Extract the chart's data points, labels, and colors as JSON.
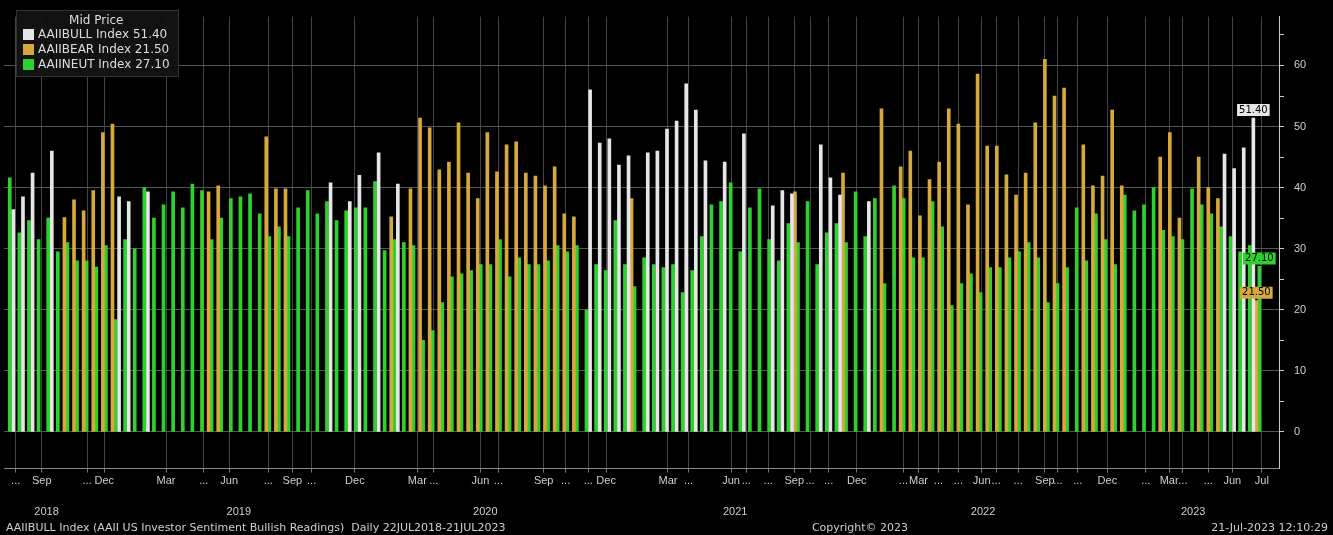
{
  "chart_data": {
    "type": "bar",
    "legend_title": "Mid Price",
    "legend": "top left",
    "grid": true,
    "x": [
      "2018-07-26",
      "2018-08-09",
      "2018-08-23",
      "2018-09-06",
      "2018-09-20",
      "2018-10-04",
      "2018-10-18",
      "2018-11-01",
      "2018-11-15",
      "2018-11-29",
      "2018-12-13",
      "2018-12-27",
      "2019-01-10",
      "2019-01-24",
      "2019-02-07",
      "2019-02-21",
      "2019-03-07",
      "2019-03-21",
      "2019-04-04",
      "2019-04-18",
      "2019-05-02",
      "2019-05-16",
      "2019-05-30",
      "2019-06-13",
      "2019-06-27",
      "2019-07-11",
      "2019-07-25",
      "2019-08-08",
      "2019-08-22",
      "2019-09-05",
      "2019-09-19",
      "2019-10-03",
      "2019-10-17",
      "2019-10-31",
      "2019-11-14",
      "2019-11-28",
      "2019-12-12",
      "2019-12-26",
      "2020-01-09",
      "2020-01-23",
      "2020-02-06",
      "2020-02-20",
      "2020-03-05",
      "2020-03-19",
      "2020-04-02",
      "2020-04-16",
      "2020-04-30",
      "2020-05-14",
      "2020-05-28",
      "2020-06-11",
      "2020-06-25",
      "2020-07-09",
      "2020-07-23",
      "2020-08-06",
      "2020-08-20",
      "2020-09-03",
      "2020-09-17",
      "2020-10-01",
      "2020-10-15",
      "2020-10-29",
      "2020-11-12",
      "2020-11-26",
      "2020-12-10",
      "2020-12-24",
      "2021-01-07",
      "2021-01-21",
      "2021-02-04",
      "2021-02-18",
      "2021-03-04",
      "2021-03-18",
      "2021-04-01",
      "2021-04-15",
      "2021-04-29",
      "2021-05-13",
      "2021-05-27",
      "2021-06-10",
      "2021-06-24",
      "2021-07-08",
      "2021-07-22",
      "2021-08-05",
      "2021-08-19",
      "2021-09-02",
      "2021-09-16",
      "2021-09-30",
      "2021-10-14",
      "2021-10-28",
      "2021-11-11",
      "2021-11-25",
      "2021-12-09",
      "2021-12-23",
      "2022-01-06",
      "2022-01-20",
      "2022-02-03",
      "2022-02-17",
      "2022-03-03",
      "2022-03-17",
      "2022-03-31",
      "2022-04-14",
      "2022-04-28",
      "2022-05-12",
      "2022-05-26",
      "2022-06-09",
      "2022-06-23",
      "2022-07-07",
      "2022-07-21",
      "2022-08-04",
      "2022-08-18",
      "2022-09-01",
      "2022-09-15",
      "2022-09-29",
      "2022-10-13",
      "2022-10-27",
      "2022-11-10",
      "2022-11-24",
      "2022-12-08",
      "2022-12-22",
      "2023-01-05",
      "2023-01-19",
      "2023-02-02",
      "2023-02-16",
      "2023-03-02",
      "2023-03-16",
      "2023-03-30",
      "2023-04-13",
      "2023-04-27",
      "2023-05-11",
      "2023-05-25",
      "2023-06-08",
      "2023-06-22",
      "2023-07-06",
      "2023-07-20"
    ],
    "xlim": [
      "2018-07-22",
      "2023-08-22"
    ],
    "xticks": [
      {
        "value": "2018-08-08",
        "label": "..."
      },
      {
        "value": "2018-09-15",
        "label": "Sep"
      },
      {
        "value": "2018-11-20",
        "label": "..."
      },
      {
        "value": "2018-12-15",
        "label": "Dec"
      },
      {
        "value": "2019-03-15",
        "label": "Mar"
      },
      {
        "value": "2019-05-09",
        "label": "..."
      },
      {
        "value": "2019-06-15",
        "label": "Jun"
      },
      {
        "value": "2019-08-11",
        "label": "..."
      },
      {
        "value": "2019-09-15",
        "label": "Sep"
      },
      {
        "value": "2019-10-13",
        "label": "..."
      },
      {
        "value": "2019-12-15",
        "label": "Dec"
      },
      {
        "value": "2020-03-15",
        "label": "Mar"
      },
      {
        "value": "2020-04-08",
        "label": "..."
      },
      {
        "value": "2020-06-15",
        "label": "Jun"
      },
      {
        "value": "2020-07-11",
        "label": "..."
      },
      {
        "value": "2020-09-15",
        "label": "Sep"
      },
      {
        "value": "2020-10-17",
        "label": "..."
      },
      {
        "value": "2020-11-19",
        "label": "..."
      },
      {
        "value": "2020-12-15",
        "label": "Dec"
      },
      {
        "value": "2021-03-15",
        "label": "Mar"
      },
      {
        "value": "2021-04-14",
        "label": "..."
      },
      {
        "value": "2021-06-15",
        "label": "Jun"
      },
      {
        "value": "2021-07-07",
        "label": "..."
      },
      {
        "value": "2021-08-08",
        "label": "..."
      },
      {
        "value": "2021-09-15",
        "label": "Sep"
      },
      {
        "value": "2021-10-08",
        "label": "..."
      },
      {
        "value": "2021-11-04",
        "label": "..."
      },
      {
        "value": "2021-12-15",
        "label": "Dec"
      },
      {
        "value": "2022-02-21",
        "label": "..."
      },
      {
        "value": "2022-03-15",
        "label": "Mar"
      },
      {
        "value": "2022-04-13",
        "label": "..."
      },
      {
        "value": "2022-05-12",
        "label": "..."
      },
      {
        "value": "2022-06-15",
        "label": "Jun"
      },
      {
        "value": "2022-07-06",
        "label": "..."
      },
      {
        "value": "2022-08-07",
        "label": "..."
      },
      {
        "value": "2022-09-15",
        "label": "Sep"
      },
      {
        "value": "2022-10-04",
        "label": "..."
      },
      {
        "value": "2022-11-02",
        "label": "..."
      },
      {
        "value": "2022-12-15",
        "label": "Dec"
      },
      {
        "value": "2023-02-09",
        "label": "..."
      },
      {
        "value": "2023-03-15",
        "label": "Mar"
      },
      {
        "value": "2023-04-04",
        "label": "..."
      },
      {
        "value": "2023-05-11",
        "label": "..."
      },
      {
        "value": "2023-06-15",
        "label": "Jun"
      },
      {
        "value": "2023-07-28",
        "label": "Jul"
      }
    ],
    "x2lim": [
      "2018-07-22",
      "2023-08-22"
    ],
    "x2ticks": [
      {
        "value": "2018-09-22",
        "label": "2018"
      },
      {
        "value": "2019-06-29",
        "label": "2019"
      },
      {
        "value": "2020-06-22",
        "label": "2020"
      },
      {
        "value": "2021-06-21",
        "label": "2021"
      },
      {
        "value": "2022-06-17",
        "label": "2022"
      },
      {
        "value": "2023-04-19",
        "label": "2023"
      }
    ],
    "ylim": [
      -6,
      68
    ],
    "yticks": [
      0,
      {
        "value": 5,
        "label": null
      },
      10,
      {
        "value": 15,
        "label": null
      },
      20,
      {
        "value": 25,
        "label": null
      },
      30,
      {
        "value": 35,
        "label": null
      },
      40,
      {
        "value": 45,
        "label": null
      },
      50,
      {
        "value": 55,
        "label": null
      },
      60,
      {
        "value": 65,
        "label": null
      }
    ],
    "series": [
      {
        "name": "AAIIBULL Index 51.40",
        "color": "#e6e6e6",
        "values": [
          null,
          36.4,
          38.5,
          42.4,
          null,
          46,
          null,
          null,
          null,
          null,
          null,
          null,
          38.5,
          37.7,
          null,
          39.3,
          null,
          null,
          null,
          null,
          null,
          null,
          null,
          null,
          null,
          null,
          null,
          null,
          null,
          null,
          null,
          null,
          null,
          null,
          40.8,
          null,
          37.7,
          42,
          null,
          45.7,
          null,
          40.6,
          null,
          null,
          null,
          null,
          null,
          null,
          null,
          null,
          null,
          null,
          null,
          null,
          null,
          null,
          null,
          null,
          null,
          null,
          null,
          56,
          47.3,
          48,
          43.7,
          45.2,
          null,
          45.7,
          46,
          49.6,
          50.9,
          57,
          52.7,
          44.4,
          null,
          44.2,
          null,
          48.8,
          null,
          null,
          37,
          39.5,
          39,
          null,
          null,
          47,
          41.6,
          38.8,
          null,
          null,
          37.7,
          null,
          null,
          null,
          null,
          null,
          null,
          null,
          null,
          null,
          null,
          null,
          null,
          null,
          null,
          null,
          null,
          null,
          null,
          null,
          null,
          null,
          null,
          null,
          null,
          null,
          null,
          null,
          null,
          null,
          null,
          null,
          null,
          null,
          null,
          null,
          null,
          45.5,
          43.1,
          46.5,
          51.4
        ],
        "value_labels": [
          null,
          null,
          null,
          null,
          null,
          null,
          null,
          null,
          null,
          null,
          null,
          null,
          null,
          null,
          null,
          null,
          null,
          null,
          null,
          null,
          null,
          null,
          null,
          null,
          null,
          null,
          null,
          null,
          null,
          null,
          null,
          null,
          null,
          null,
          null,
          null,
          null,
          null,
          null,
          null,
          null,
          null,
          null,
          null,
          null,
          null,
          null,
          null,
          null,
          null,
          null,
          null,
          null,
          null,
          null,
          null,
          null,
          null,
          null,
          null,
          null,
          null,
          null,
          null,
          null,
          null,
          null,
          null,
          null,
          null,
          null,
          null,
          null,
          null,
          null,
          null,
          null,
          null,
          null,
          null,
          null,
          null,
          null,
          null,
          null,
          null,
          null,
          null,
          null,
          null,
          null,
          null,
          null,
          null,
          null,
          null,
          null,
          null,
          null,
          null,
          null,
          null,
          null,
          null,
          null,
          null,
          null,
          null,
          null,
          null,
          null,
          null,
          null,
          null,
          null,
          null,
          null,
          null,
          null,
          null,
          null,
          null,
          null,
          null,
          null,
          null,
          null,
          null,
          null,
          null,
          "51.40"
        ]
      },
      {
        "name": "AAIIBEAR Index 21.50",
        "color": "#d6a93c",
        "values": [
          null,
          null,
          null,
          null,
          null,
          null,
          35.1,
          38,
          36.2,
          39.5,
          49,
          50.4,
          null,
          null,
          null,
          null,
          null,
          null,
          null,
          null,
          null,
          39.3,
          40.3,
          null,
          null,
          null,
          null,
          48.3,
          39.8,
          39.8,
          null,
          null,
          null,
          null,
          null,
          null,
          null,
          null,
          null,
          null,
          35.2,
          null,
          39.8,
          51.4,
          49.8,
          42.9,
          44.2,
          50.6,
          42.4,
          38.2,
          49,
          42.6,
          47,
          47.5,
          42.4,
          41.9,
          40.3,
          43.4,
          35.7,
          35.2,
          null,
          null,
          null,
          null,
          null,
          38.2,
          null,
          null,
          null,
          null,
          null,
          null,
          null,
          null,
          null,
          null,
          null,
          null,
          null,
          null,
          null,
          null,
          39.3,
          null,
          null,
          null,
          null,
          42.4,
          null,
          null,
          null,
          52.9,
          null,
          43.4,
          46,
          35.4,
          41.3,
          44.2,
          52.9,
          50.4,
          37.2,
          58.6,
          46.8,
          46.8,
          42.1,
          38.8,
          42.4,
          50.6,
          61,
          55,
          56.3,
          null,
          47,
          40.3,
          41.9,
          52.7,
          40.3,
          null,
          null,
          null,
          45,
          49,
          35,
          null,
          45,
          40,
          38.2,
          null,
          null,
          null,
          21.5
        ],
        "value_labels": [
          null,
          null,
          null,
          null,
          null,
          null,
          null,
          null,
          null,
          null,
          null,
          null,
          null,
          null,
          null,
          null,
          null,
          null,
          null,
          null,
          null,
          null,
          null,
          null,
          null,
          null,
          null,
          null,
          null,
          null,
          null,
          null,
          null,
          null,
          null,
          null,
          null,
          null,
          null,
          null,
          null,
          null,
          null,
          null,
          null,
          null,
          null,
          null,
          null,
          null,
          null,
          null,
          null,
          null,
          null,
          null,
          null,
          null,
          null,
          null,
          null,
          null,
          null,
          null,
          null,
          null,
          null,
          null,
          null,
          null,
          null,
          null,
          null,
          null,
          null,
          null,
          null,
          null,
          null,
          null,
          null,
          null,
          null,
          null,
          null,
          null,
          null,
          null,
          null,
          null,
          null,
          null,
          null,
          null,
          null,
          null,
          null,
          null,
          null,
          null,
          null,
          null,
          null,
          null,
          null,
          null,
          null,
          null,
          null,
          null,
          null,
          null,
          null,
          null,
          null,
          null,
          null,
          null,
          null,
          null,
          null,
          null,
          null,
          null,
          null,
          null,
          null,
          null,
          null,
          null,
          "21.50"
        ]
      },
      {
        "name": "AAIINEUT Index 27.10",
        "color": "#2fd12f",
        "values": [
          41.6,
          32.6,
          34.6,
          31.5,
          35,
          29.5,
          31,
          28,
          28,
          27,
          30.5,
          18.4,
          31.5,
          30,
          40,
          35,
          37.2,
          39.3,
          36.7,
          40.6,
          39.5,
          31.5,
          35,
          38.2,
          38.5,
          39,
          35.7,
          32,
          33.6,
          32,
          36.7,
          39.5,
          35.7,
          37.7,
          34.6,
          36.2,
          36.7,
          36.7,
          41,
          29.7,
          31.5,
          31,
          30.5,
          15,
          16.6,
          21.2,
          25.4,
          25.9,
          26.4,
          27.4,
          27.4,
          31.5,
          25.4,
          28.5,
          27.4,
          27.4,
          28,
          30.5,
          29.5,
          30.5,
          20,
          27.4,
          26.4,
          34.6,
          27.4,
          23.8,
          28.5,
          27.4,
          26.9,
          27.4,
          22.8,
          26.4,
          32,
          37.2,
          37.7,
          40.8,
          29.5,
          36.7,
          39.8,
          31.5,
          28,
          34.1,
          31,
          37.7,
          27.4,
          32.6,
          34.1,
          31,
          39.3,
          32,
          38.2,
          24.3,
          40.3,
          38.2,
          28.5,
          28.5,
          37.7,
          33.6,
          20.7,
          24.3,
          25.9,
          22.8,
          26.9,
          26.9,
          28.5,
          29.5,
          31,
          28.5,
          21.2,
          24.3,
          26.9,
          36.7,
          28,
          35.7,
          31.5,
          27.4,
          38.8,
          36.2,
          37.2,
          40,
          33,
          32,
          31.5,
          39.8,
          37.2,
          35.7,
          33.6,
          32,
          29.5,
          30.5,
          27.1
        ],
        "value_labels": [
          null,
          null,
          null,
          null,
          null,
          null,
          null,
          null,
          null,
          null,
          null,
          null,
          null,
          null,
          null,
          null,
          null,
          null,
          null,
          null,
          null,
          null,
          null,
          null,
          null,
          null,
          null,
          null,
          null,
          null,
          null,
          null,
          null,
          null,
          null,
          null,
          null,
          null,
          null,
          null,
          null,
          null,
          null,
          null,
          null,
          null,
          null,
          null,
          null,
          null,
          null,
          null,
          null,
          null,
          null,
          null,
          null,
          null,
          null,
          null,
          null,
          null,
          null,
          null,
          null,
          null,
          null,
          null,
          null,
          null,
          null,
          null,
          null,
          null,
          null,
          null,
          null,
          null,
          null,
          null,
          null,
          null,
          null,
          null,
          null,
          null,
          null,
          null,
          null,
          null,
          null,
          null,
          null,
          null,
          null,
          null,
          null,
          null,
          null,
          null,
          null,
          null,
          null,
          null,
          null,
          null,
          null,
          null,
          null,
          null,
          null,
          null,
          null,
          null,
          null,
          null,
          null,
          null,
          null,
          null,
          null,
          null,
          null,
          null,
          null,
          null,
          null,
          null,
          null,
          null,
          "27.10"
        ]
      }
    ],
    "annotations": [
      "AAIIBULL Index (AAII US Investor Sentiment Bullish Readings)  Daily 22JUL2018-21JUL2023",
      "Copyright© 2023",
      "21-Jul-2023 12:10:29"
    ]
  }
}
